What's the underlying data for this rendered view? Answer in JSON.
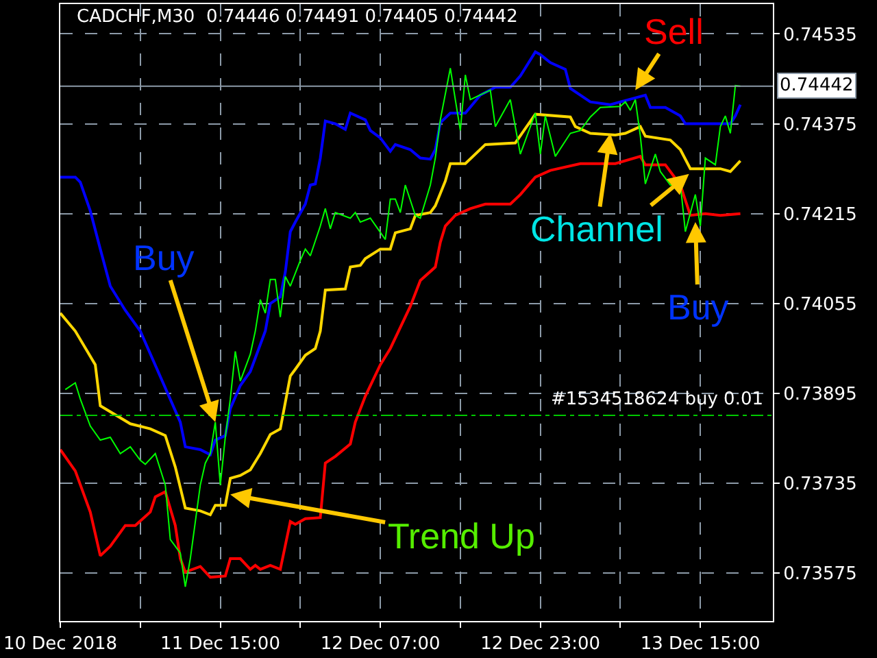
{
  "chart_data": {
    "type": "line",
    "title": "CADCHF,M30  0.74446 0.74491 0.74405 0.74442",
    "xlim": [
      "2018-12-10T23:00",
      "2018-12-13T22:15"
    ],
    "ylim": [
      0.7349,
      0.74588
    ],
    "xticks": [
      {
        "value": "2018-12-10T23:00",
        "label": "10 Dec 2018"
      },
      {
        "value": "2018-12-11T07:00",
        "label": null
      },
      {
        "value": "2018-12-11T15:00",
        "label": "11 Dec 15:00"
      },
      {
        "value": "2018-12-11T23:00",
        "label": null
      },
      {
        "value": "2018-12-12T07:00",
        "label": "12 Dec 07:00"
      },
      {
        "value": "2018-12-12T15:00",
        "label": null
      },
      {
        "value": "2018-12-12T23:00",
        "label": "12 Dec 23:00"
      },
      {
        "value": "2018-12-13T07:00",
        "label": null
      },
      {
        "value": "2018-12-13T15:00",
        "label": "13 Dec 15:00"
      }
    ],
    "yticks": [
      0.73575,
      0.73735,
      0.73895,
      0.74055,
      0.74215,
      0.74375,
      0.74535
    ],
    "grid": true,
    "marker": "none",
    "line_style": "solid",
    "series": [
      {
        "color": "#0000ff",
        "x": [
          "2018-12-10T23:00",
          "2018-12-11T00:30",
          "2018-12-11T01:00",
          "2018-12-11T02:00",
          "2018-12-11T03:00",
          "2018-12-11T04:00",
          "2018-12-11T05:30",
          "2018-12-11T07:00",
          "2018-12-11T11:00",
          "2018-12-11T11:30",
          "2018-12-11T13:00",
          "2018-12-11T14:00",
          "2018-12-11T14:30",
          "2018-12-11T15:30",
          "2018-12-11T16:00",
          "2018-12-11T17:00",
          "2018-12-11T18:00",
          "2018-12-11T19:30",
          "2018-12-11T20:00",
          "2018-12-11T21:00",
          "2018-12-11T21:30",
          "2018-12-11T22:00",
          "2018-12-11T22:30",
          "2018-12-11T23:30",
          "2018-12-12T00:00",
          "2018-12-12T00:30",
          "2018-12-12T01:00",
          "2018-12-12T01:30",
          "2018-12-12T02:30",
          "2018-12-12T03:30",
          "2018-12-12T04:00",
          "2018-12-12T05:30",
          "2018-12-12T06:00",
          "2018-12-12T07:00",
          "2018-12-12T08:00",
          "2018-12-12T08:30",
          "2018-12-12T10:00",
          "2018-12-12T11:00",
          "2018-12-12T12:00",
          "2018-12-12T12:30",
          "2018-12-12T13:00",
          "2018-12-12T14:00",
          "2018-12-12T15:30",
          "2018-12-12T17:00",
          "2018-12-12T18:30",
          "2018-12-12T20:00",
          "2018-12-12T21:00",
          "2018-12-12T22:30",
          "2018-12-12T23:00",
          "2018-12-13T00:00",
          "2018-12-13T01:30",
          "2018-12-13T02:00",
          "2018-12-13T04:00",
          "2018-12-13T06:00",
          "2018-12-13T07:00",
          "2018-12-13T09:30",
          "2018-12-13T10:00",
          "2018-12-13T11:30",
          "2018-12-13T13:00",
          "2018-12-13T13:30",
          "2018-12-13T18:00",
          "2018-12-13T18:30",
          "2018-12-13T19:00"
        ],
        "values": [
          0.7428,
          0.7428,
          0.74271,
          0.7422,
          0.74152,
          0.74086,
          0.74043,
          0.74006,
          0.73844,
          0.738,
          0.73795,
          0.73786,
          0.73812,
          0.7382,
          0.73868,
          0.73909,
          0.73934,
          0.74006,
          0.74055,
          0.74067,
          0.74111,
          0.74183,
          0.742,
          0.74232,
          0.74266,
          0.74268,
          0.74314,
          0.7438,
          0.74375,
          0.74365,
          0.74394,
          0.74382,
          0.74363,
          0.7435,
          0.74326,
          0.74338,
          0.74329,
          0.74314,
          0.74312,
          0.74329,
          0.74377,
          0.74394,
          0.74394,
          0.74426,
          0.7444,
          0.7444,
          0.7446,
          0.74503,
          0.74498,
          0.74484,
          0.74472,
          0.74438,
          0.74414,
          0.74409,
          0.74414,
          0.74426,
          0.74404,
          0.74404,
          0.74389,
          0.74375,
          0.74375,
          0.74389,
          0.74409
        ]
      },
      {
        "color": "#ffd700",
        "x": [
          "2018-12-10T23:00",
          "2018-12-11T00:30",
          "2018-12-11T02:30",
          "2018-12-11T03:00",
          "2018-12-11T06:00",
          "2018-12-11T08:00",
          "2018-12-11T09:30",
          "2018-12-11T10:30",
          "2018-12-11T11:30",
          "2018-12-11T13:00",
          "2018-12-11T14:00",
          "2018-12-11T14:30",
          "2018-12-11T15:30",
          "2018-12-11T16:00",
          "2018-12-11T17:00",
          "2018-12-11T18:00",
          "2018-12-11T19:00",
          "2018-12-11T20:00",
          "2018-12-11T21:00",
          "2018-12-11T22:00",
          "2018-12-11T22:30",
          "2018-12-11T23:30",
          "2018-12-12T00:30",
          "2018-12-12T01:00",
          "2018-12-12T01:30",
          "2018-12-12T03:30",
          "2018-12-12T04:00",
          "2018-12-12T05:00",
          "2018-12-12T05:30",
          "2018-12-12T07:00",
          "2018-12-12T08:00",
          "2018-12-12T08:30",
          "2018-12-12T10:00",
          "2018-12-12T10:30",
          "2018-12-12T12:00",
          "2018-12-12T12:30",
          "2018-12-12T13:30",
          "2018-12-12T14:00",
          "2018-12-12T15:30",
          "2018-12-12T17:30",
          "2018-12-12T20:30",
          "2018-12-12T22:30",
          "2018-12-13T02:00",
          "2018-12-13T02:30",
          "2018-12-13T04:00",
          "2018-12-13T06:30",
          "2018-12-13T07:30",
          "2018-12-13T09:00",
          "2018-12-13T09:30",
          "2018-12-13T12:00",
          "2018-12-13T13:00",
          "2018-12-13T14:00",
          "2018-12-13T17:00",
          "2018-12-13T18:00",
          "2018-12-13T19:00"
        ],
        "values": [
          0.74038,
          0.74006,
          0.73946,
          0.73873,
          0.73841,
          0.73832,
          0.7382,
          0.73764,
          0.73691,
          0.73686,
          0.73679,
          0.73696,
          0.73696,
          0.73744,
          0.73749,
          0.73759,
          0.73788,
          0.73822,
          0.73832,
          0.73926,
          0.73938,
          0.73963,
          0.73975,
          0.74006,
          0.74079,
          0.74081,
          0.7412,
          0.74123,
          0.74135,
          0.74152,
          0.74152,
          0.74181,
          0.74188,
          0.74212,
          0.74217,
          0.74229,
          0.74273,
          0.74304,
          0.74304,
          0.74338,
          0.74341,
          0.74392,
          0.74387,
          0.7437,
          0.74358,
          0.74355,
          0.74358,
          0.7437,
          0.74353,
          0.74346,
          0.74329,
          0.74295,
          0.74295,
          0.7429,
          0.74309
        ]
      },
      {
        "color": "#ff0000",
        "x": [
          "2018-12-10T23:00",
          "2018-12-11T00:30",
          "2018-12-11T02:00",
          "2018-12-11T03:00",
          "2018-12-11T04:00",
          "2018-12-11T05:30",
          "2018-12-11T06:30",
          "2018-12-11T08:00",
          "2018-12-11T08:30",
          "2018-12-11T09:30",
          "2018-12-11T10:30",
          "2018-12-11T11:00",
          "2018-12-11T11:30",
          "2018-12-11T13:00",
          "2018-12-11T14:00",
          "2018-12-11T15:30",
          "2018-12-11T16:00",
          "2018-12-11T17:00",
          "2018-12-11T18:00",
          "2018-12-11T18:30",
          "2018-12-11T19:00",
          "2018-12-11T20:00",
          "2018-12-11T21:00",
          "2018-12-11T22:00",
          "2018-12-11T22:30",
          "2018-12-11T23:30",
          "2018-12-12T01:00",
          "2018-12-12T01:30",
          "2018-12-12T02:30",
          "2018-12-12T04:00",
          "2018-12-12T04:30",
          "2018-12-12T05:30",
          "2018-12-12T07:00",
          "2018-12-12T08:00",
          "2018-12-12T10:00",
          "2018-12-12T11:00",
          "2018-12-12T12:30",
          "2018-12-12T13:00",
          "2018-12-12T13:30",
          "2018-12-12T14:30",
          "2018-12-12T16:00",
          "2018-12-12T17:30",
          "2018-12-12T20:00",
          "2018-12-12T21:00",
          "2018-12-12T22:30",
          "2018-12-13T00:00",
          "2018-12-13T03:00",
          "2018-12-13T06:30",
          "2018-12-13T09:00",
          "2018-12-13T09:30",
          "2018-12-13T11:30",
          "2018-12-13T13:00",
          "2018-12-13T14:00",
          "2018-12-13T15:30",
          "2018-12-13T17:00",
          "2018-12-13T19:00"
        ],
        "values": [
          0.73795,
          0.73757,
          0.73684,
          0.73606,
          0.73623,
          0.7366,
          0.7366,
          0.73684,
          0.73711,
          0.7372,
          0.7366,
          0.73601,
          0.73577,
          0.73587,
          0.73568,
          0.7357,
          0.73601,
          0.73601,
          0.73582,
          0.73589,
          0.73582,
          0.73589,
          0.73582,
          0.73667,
          0.73662,
          0.73672,
          0.73674,
          0.73771,
          0.73783,
          0.73805,
          0.73844,
          0.7389,
          0.73946,
          0.73975,
          0.7405,
          0.74096,
          0.7412,
          0.74164,
          0.74193,
          0.74212,
          0.74224,
          0.74232,
          0.74232,
          0.74249,
          0.7428,
          0.74292,
          0.74304,
          0.74304,
          0.74317,
          0.74302,
          0.74302,
          0.74266,
          0.74212,
          0.74215,
          0.74212,
          0.74215
        ]
      },
      {
        "color": "#00ff00",
        "x": [
          "2018-12-10T23:30",
          "2018-12-11T00:30",
          "2018-12-11T01:00",
          "2018-12-11T02:00",
          "2018-12-11T03:00",
          "2018-12-11T04:00",
          "2018-12-11T05:00",
          "2018-12-11T06:00",
          "2018-12-11T07:00",
          "2018-12-11T07:30",
          "2018-12-11T08:30",
          "2018-12-11T09:30",
          "2018-12-11T10:00",
          "2018-12-11T11:00",
          "2018-12-11T11:30",
          "2018-12-11T12:00",
          "2018-12-11T13:00",
          "2018-12-11T13:30",
          "2018-12-11T14:00",
          "2018-12-11T14:30",
          "2018-12-11T15:00",
          "2018-12-11T15:30",
          "2018-12-11T16:00",
          "2018-12-11T16:30",
          "2018-12-11T17:00",
          "2018-12-11T17:30",
          "2018-12-11T18:00",
          "2018-12-11T18:30",
          "2018-12-11T19:00",
          "2018-12-11T19:30",
          "2018-12-11T20:00",
          "2018-12-11T20:30",
          "2018-12-11T21:00",
          "2018-12-11T21:30",
          "2018-12-11T22:00",
          "2018-12-11T23:00",
          "2018-12-11T23:30",
          "2018-12-12T00:00",
          "2018-12-12T01:00",
          "2018-12-12T01:30",
          "2018-12-12T02:00",
          "2018-12-12T02:30",
          "2018-12-12T04:00",
          "2018-12-12T04:30",
          "2018-12-12T05:00",
          "2018-12-12T06:00",
          "2018-12-12T07:30",
          "2018-12-12T08:00",
          "2018-12-12T08:30",
          "2018-12-12T09:00",
          "2018-12-12T09:30",
          "2018-12-12T10:30",
          "2018-12-12T11:00",
          "2018-12-12T12:00",
          "2018-12-12T12:30",
          "2018-12-12T13:00",
          "2018-12-12T14:00",
          "2018-12-12T14:30",
          "2018-12-12T15:00",
          "2018-12-12T15:30",
          "2018-12-12T16:00",
          "2018-12-12T18:00",
          "2018-12-12T18:30",
          "2018-12-12T20:00",
          "2018-12-12T21:00",
          "2018-12-12T22:30",
          "2018-12-12T23:00",
          "2018-12-12T23:30",
          "2018-12-13T00:30",
          "2018-12-13T02:00",
          "2018-12-13T03:00",
          "2018-12-13T04:00",
          "2018-12-13T05:00",
          "2018-12-13T07:00",
          "2018-12-13T07:30",
          "2018-12-13T08:00",
          "2018-12-13T08:30",
          "2018-12-13T09:00",
          "2018-12-13T09:30",
          "2018-12-13T10:30",
          "2018-12-13T11:00",
          "2018-12-13T12:00",
          "2018-12-13T13:00",
          "2018-12-13T13:30",
          "2018-12-13T14:30",
          "2018-12-13T15:00",
          "2018-12-13T15:30",
          "2018-12-13T16:30",
          "2018-12-13T17:00",
          "2018-12-13T17:30",
          "2018-12-13T18:00",
          "2018-12-13T18:30",
          "2018-12-13T19:00"
        ],
        "values": [
          0.73902,
          0.73914,
          0.73885,
          0.73837,
          0.73812,
          0.73817,
          0.73788,
          0.738,
          0.73776,
          0.73769,
          0.73788,
          0.73732,
          0.73635,
          0.73611,
          0.73551,
          0.73601,
          0.73732,
          0.73771,
          0.73788,
          0.73844,
          0.73732,
          0.73817,
          0.73885,
          0.7397,
          0.73917,
          0.73941,
          0.73965,
          0.74006,
          0.74062,
          0.74038,
          0.74098,
          0.74098,
          0.74031,
          0.74103,
          0.74086,
          0.74132,
          0.74152,
          0.7414,
          0.74193,
          0.74224,
          0.74188,
          0.74217,
          0.74207,
          0.74217,
          0.742,
          0.74207,
          0.74169,
          0.74241,
          0.74241,
          0.74217,
          0.74266,
          0.74212,
          0.74207,
          0.74266,
          0.74314,
          0.74382,
          0.74474,
          0.74418,
          0.74363,
          0.74462,
          0.74418,
          0.74435,
          0.7437,
          0.74418,
          0.74321,
          0.74394,
          0.74321,
          0.74389,
          0.74317,
          0.74358,
          0.74363,
          0.74387,
          0.74404,
          0.74406,
          0.74414,
          0.74399,
          0.74418,
          0.74353,
          0.74268,
          0.74321,
          0.7429,
          0.74266,
          0.74268,
          0.74183,
          0.74249,
          0.74193,
          0.74314,
          0.74302,
          0.7437,
          0.74389,
          0.74358,
          0.74443,
          0.74442
        ]
      }
    ],
    "ref_lines": [
      {
        "axis": "y",
        "value": 0.74442,
        "label": "0.74442",
        "color": "#8c9aa8",
        "line_style": "solid"
      },
      {
        "axis": "y",
        "value": 0.73856,
        "label": "#1534518624 buy 0.01",
        "color": "#00c800",
        "line_style": "dashed"
      }
    ],
    "annotations": [
      {
        "text": "Buy",
        "x": "2018-12-11T14:30",
        "y": 0.73844
      },
      {
        "text": "Sell",
        "x": "2018-12-13T08:30",
        "y": 0.74435
      },
      {
        "text": "Channel",
        "x": "2018-12-13T06:00",
        "y": 0.74358
      },
      {
        "text": "Trend Up",
        "x": "2018-12-11T16:00",
        "y": 0.73715
      },
      {
        "text": "Buy",
        "x": "2018-12-13T14:30",
        "y": 0.742
      }
    ]
  }
}
